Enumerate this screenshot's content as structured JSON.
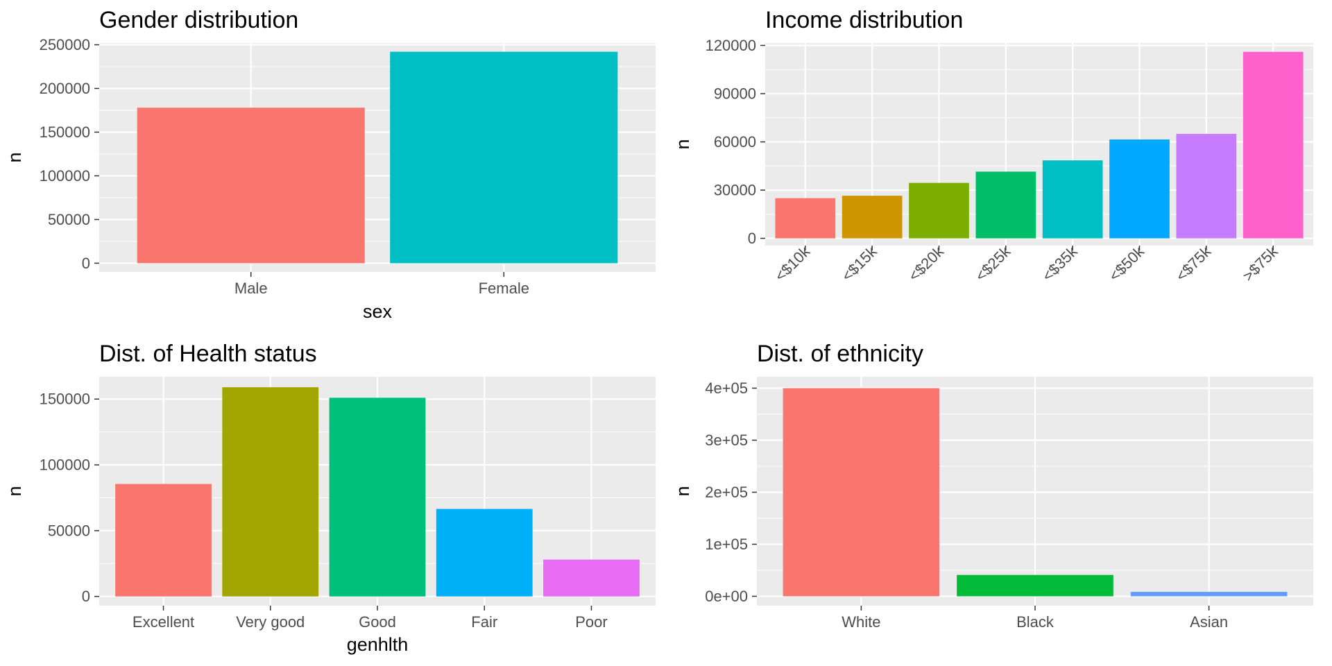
{
  "colors": {
    "panel_background": "#ebebeb",
    "grid_major": "#ffffff",
    "tick_text": "#4d4d4d",
    "text": "#000000"
  },
  "chart_data": [
    {
      "type": "bar",
      "title": "Gender distribution",
      "xlabel": "sex",
      "ylabel": "n",
      "categories": [
        "Male",
        "Female"
      ],
      "values": [
        178000,
        242000
      ],
      "colors": [
        "#F8766D",
        "#00BFC4"
      ],
      "ylim": [
        -10000,
        252000
      ],
      "yticks": [
        0,
        50000,
        100000,
        150000,
        200000,
        250000
      ],
      "ytick_labels": [
        "0",
        "50000",
        "100000",
        "150000",
        "200000",
        "250000"
      ],
      "xtick_rotation": 0,
      "grid": true,
      "legend": "none"
    },
    {
      "type": "bar",
      "title": "Income distribution",
      "xlabel": "",
      "ylabel": "n",
      "categories": [
        "<$10k",
        "<$15k",
        "<$20k",
        "<$25k",
        "<$35k",
        "<$50k",
        "<$75k",
        ">$75k"
      ],
      "values": [
        25000,
        26500,
        34500,
        41500,
        48500,
        61500,
        65000,
        116000
      ],
      "colors": [
        "#F8766D",
        "#CD9600",
        "#7CAE00",
        "#00BE67",
        "#00BFC4",
        "#00A9FF",
        "#C77CFF",
        "#FF61CC"
      ],
      "ylim": [
        -4500,
        121500
      ],
      "yticks": [
        0,
        30000,
        60000,
        90000,
        120000
      ],
      "ytick_labels": [
        "0",
        "30000",
        "60000",
        "90000",
        "120000"
      ],
      "xtick_rotation": -45,
      "grid": true,
      "legend": "none"
    },
    {
      "type": "bar",
      "title": "Dist. of Health status",
      "xlabel": "genhlth",
      "ylabel": "n",
      "categories": [
        "Excellent",
        "Very good",
        "Good",
        "Fair",
        "Poor"
      ],
      "values": [
        85500,
        159000,
        151000,
        66500,
        28000
      ],
      "colors": [
        "#F8766D",
        "#A3A500",
        "#00BF7D",
        "#00B0F6",
        "#E76BF3"
      ],
      "ylim": [
        -7000,
        167000
      ],
      "yticks": [
        0,
        50000,
        100000,
        150000
      ],
      "ytick_labels": [
        "0",
        "50000",
        "100000",
        "150000"
      ],
      "xtick_rotation": 0,
      "grid": true,
      "legend": "none"
    },
    {
      "type": "bar",
      "title": "Dist.  of ethnicity",
      "xlabel": "",
      "ylabel": "n",
      "categories": [
        "White",
        "Black",
        "Asian"
      ],
      "values": [
        400000,
        41000,
        8500
      ],
      "colors": [
        "#F8766D",
        "#00BA38",
        "#619CFF"
      ],
      "ylim": [
        -18000,
        422000
      ],
      "yticks": [
        0,
        100000,
        200000,
        300000,
        400000
      ],
      "ytick_labels": [
        "0e+00",
        "1e+05",
        "2e+05",
        "3e+05",
        "4e+05"
      ],
      "xtick_rotation": 0,
      "grid": true,
      "legend": "none"
    }
  ]
}
